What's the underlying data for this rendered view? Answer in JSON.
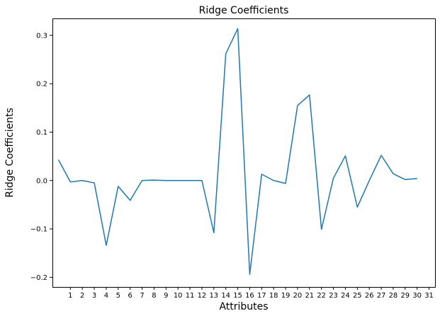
{
  "chart_data": {
    "type": "line",
    "title": "Ridge Coefficients",
    "xlabel": "Attributes",
    "ylabel": "Ridge Coefficients",
    "x_ticks": [
      1,
      2,
      3,
      4,
      5,
      6,
      7,
      8,
      9,
      10,
      11,
      12,
      13,
      14,
      15,
      16,
      17,
      18,
      19,
      20,
      21,
      22,
      23,
      24,
      25,
      26,
      27,
      28,
      29,
      30,
      31
    ],
    "y_ticks": [
      0.3,
      0.2,
      0.1,
      0.0,
      -0.1,
      -0.2
    ],
    "y_tick_labels": [
      "0.3",
      "0.2",
      "0.1",
      "0.0",
      "−0.1",
      "−0.2"
    ],
    "xlim": [
      -0.5,
      31.5
    ],
    "ylim": [
      -0.22,
      0.335
    ],
    "grid": false,
    "legend": false,
    "series": [
      {
        "color": "#1f77b4",
        "x": [
          0,
          1,
          2,
          3,
          4,
          5,
          6,
          7,
          8,
          9,
          10,
          11,
          12,
          13,
          14,
          15,
          16,
          17,
          18,
          19,
          20,
          21,
          22,
          23,
          24,
          25,
          26,
          27,
          28,
          29,
          30
        ],
        "values": [
          0.043,
          -0.003,
          0.0,
          -0.005,
          -0.134,
          -0.012,
          -0.041,
          0.0,
          0.001,
          0.0,
          0.0,
          0.0,
          0.0,
          -0.108,
          0.262,
          0.314,
          -0.194,
          0.013,
          0.0,
          -0.006,
          0.155,
          0.177,
          -0.101,
          0.005,
          0.051,
          -0.055,
          0.0,
          0.052,
          0.014,
          0.002,
          0.004
        ]
      }
    ]
  }
}
